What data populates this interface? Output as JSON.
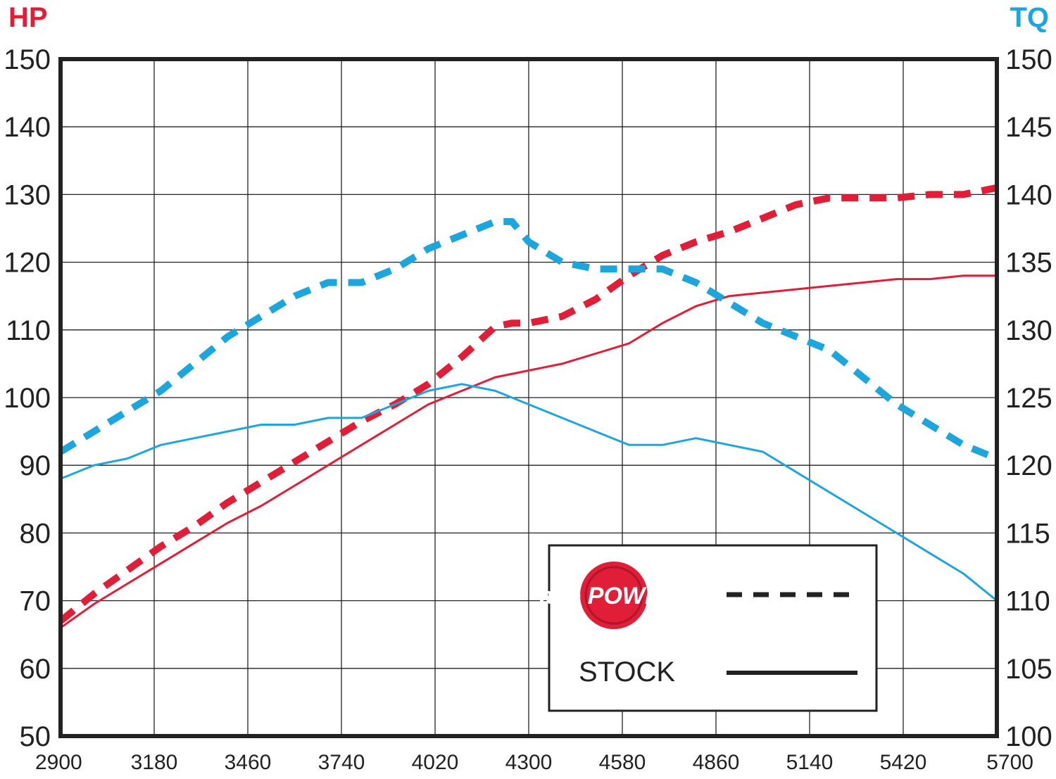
{
  "chart_data": {
    "type": "line",
    "left_axis": {
      "label": "HP",
      "color": "#e01e37",
      "ylim": [
        50,
        150
      ],
      "ticks": [
        "150",
        "140",
        "130",
        "120",
        "110",
        "100",
        "90",
        "80",
        "70",
        "60",
        "50"
      ]
    },
    "right_axis": {
      "label": "TQ",
      "color": "#1ea6dc",
      "ylim": [
        100,
        150
      ],
      "ticks": [
        "150",
        "145",
        "140",
        "135",
        "130",
        "125",
        "120",
        "115",
        "110",
        "105",
        "100"
      ]
    },
    "xlim": [
      2900,
      5700
    ],
    "x_ticks": [
      "2900",
      "3180",
      "3460",
      "3740",
      "4020",
      "4300",
      "4580",
      "4860",
      "5140",
      "5420",
      "5700"
    ],
    "grid": true,
    "legend": {
      "position": "bottom-right",
      "logo_text": "aFe POWER",
      "entries": [
        {
          "label": "",
          "style": "dashed"
        },
        {
          "label": "STOCK",
          "style": "solid"
        }
      ]
    },
    "series": [
      {
        "id": "hp_afe",
        "axis": "left",
        "style": "dashed",
        "color": "#e01e37",
        "x": [
          2900,
          3000,
          3100,
          3200,
          3300,
          3400,
          3500,
          3600,
          3700,
          3800,
          3900,
          4000,
          4100,
          4200,
          4250,
          4300,
          4400,
          4500,
          4600,
          4700,
          4800,
          4900,
          5000,
          5100,
          5200,
          5300,
          5400,
          5500,
          5600,
          5700
        ],
        "y": [
          67,
          71,
          74.5,
          78,
          81,
          84.5,
          87.5,
          90.5,
          93.5,
          96.5,
          99,
          102,
          106,
          110.5,
          111,
          111,
          112,
          114.5,
          118,
          121,
          123,
          124.5,
          126.5,
          128.5,
          129.5,
          129.5,
          129.5,
          130,
          130,
          131
        ]
      },
      {
        "id": "hp_stock",
        "axis": "left",
        "style": "solid",
        "color": "#e01e37",
        "x": [
          2900,
          3000,
          3100,
          3200,
          3300,
          3400,
          3500,
          3600,
          3700,
          3800,
          3900,
          4000,
          4100,
          4200,
          4300,
          4400,
          4500,
          4600,
          4700,
          4800,
          4900,
          5000,
          5100,
          5200,
          5300,
          5400,
          5500,
          5600,
          5700
        ],
        "y": [
          66,
          69.5,
          72.5,
          75.5,
          78.5,
          81.5,
          84,
          87,
          90,
          93,
          96,
          99,
          101,
          103,
          104,
          105,
          106.5,
          108,
          111,
          113.5,
          115,
          115.5,
          116,
          116.5,
          117,
          117.5,
          117.5,
          118,
          118
        ]
      },
      {
        "id": "tq_afe",
        "axis": "right",
        "style": "dashed",
        "color": "#1ea6dc",
        "x": [
          2900,
          3000,
          3100,
          3200,
          3300,
          3400,
          3500,
          3600,
          3700,
          3800,
          3900,
          4000,
          4100,
          4200,
          4250,
          4300,
          4400,
          4500,
          4600,
          4700,
          4800,
          4900,
          5000,
          5100,
          5200,
          5300,
          5400,
          5500,
          5600,
          5700
        ],
        "y": [
          121,
          122.5,
          124,
          125.5,
          127.5,
          129.5,
          131,
          132.5,
          133.5,
          133.5,
          134.5,
          136,
          137,
          138,
          138,
          136.5,
          135,
          134.5,
          134.5,
          134.5,
          133.5,
          132,
          130.5,
          129.5,
          128.5,
          126.5,
          124.5,
          123,
          121.5,
          120.5
        ]
      },
      {
        "id": "tq_stock",
        "axis": "right",
        "style": "solid",
        "color": "#1ea6dc",
        "x": [
          2900,
          3000,
          3100,
          3200,
          3300,
          3400,
          3500,
          3600,
          3700,
          3800,
          3900,
          4000,
          4100,
          4200,
          4300,
          4400,
          4500,
          4600,
          4700,
          4800,
          4900,
          5000,
          5100,
          5200,
          5300,
          5400,
          5500,
          5600,
          5700
        ],
        "y": [
          119,
          120,
          120.5,
          121.5,
          122,
          122.5,
          123,
          123,
          123.5,
          123.5,
          124.5,
          125.5,
          126,
          125.5,
          124.5,
          123.5,
          122.5,
          121.5,
          121.5,
          122,
          121.5,
          121,
          119.5,
          118,
          116.5,
          115,
          113.5,
          112,
          110
        ]
      }
    ]
  }
}
